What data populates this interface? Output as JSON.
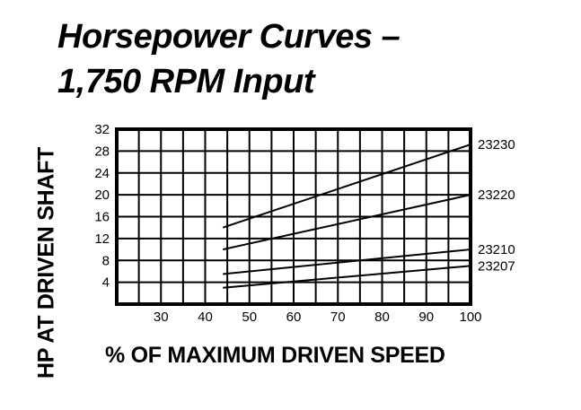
{
  "title": {
    "line1": "Horsepower Curves –",
    "line2": "1,750 RPM Input"
  },
  "axes": {
    "xlabel": "% OF MAXIMUM DRIVEN SPEED",
    "ylabel": "HP AT DRIVEN SHAFT"
  },
  "chart_data": {
    "type": "line",
    "title": "Horsepower Curves – 1,750 RPM Input",
    "xlabel": "% OF MAXIMUM DRIVEN SPEED",
    "ylabel": "HP AT DRIVEN SHAFT",
    "xlim": [
      20,
      100
    ],
    "ylim": [
      0,
      32
    ],
    "x_ticks": [
      30,
      40,
      50,
      60,
      70,
      80,
      90,
      100
    ],
    "y_ticks": [
      4,
      8,
      12,
      16,
      20,
      24,
      28,
      32
    ],
    "grid": true,
    "x_grid_step": 5,
    "y_grid_step": 4,
    "legend_position": "right (inline labels at line ends)",
    "series": [
      {
        "name": "23230",
        "x": [
          44,
          100
        ],
        "values": [
          14,
          29.2
        ]
      },
      {
        "name": "23220",
        "x": [
          44,
          100
        ],
        "values": [
          10,
          20
        ]
      },
      {
        "name": "23210",
        "x": [
          44,
          100
        ],
        "values": [
          5.5,
          10
        ]
      },
      {
        "name": "23207",
        "x": [
          44,
          100
        ],
        "values": [
          3,
          7
        ]
      }
    ]
  }
}
